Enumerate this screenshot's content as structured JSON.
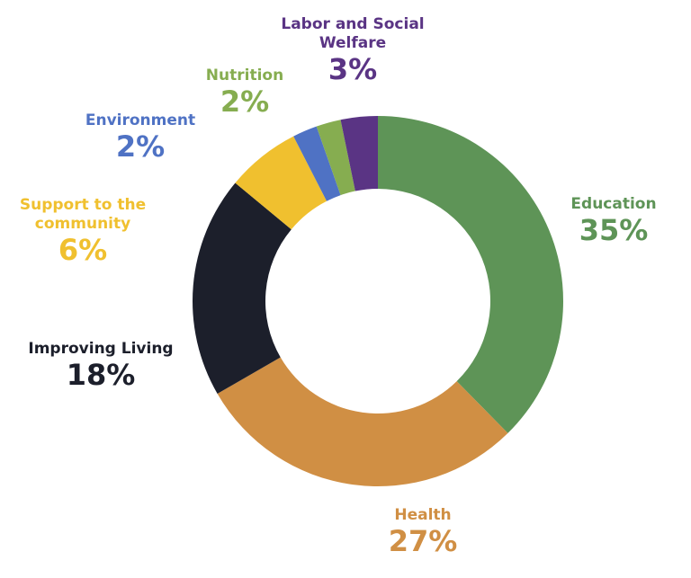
{
  "chart_data": {
    "type": "donut",
    "categories": [
      "Education",
      "Health",
      "Improving Living",
      "Support to the community",
      "Environment",
      "Nutrition",
      "Labor and Social Welfare"
    ],
    "values": [
      35,
      27,
      18,
      6,
      2,
      2,
      3
    ],
    "value_labels": [
      "35%",
      "27%",
      "18%",
      "6%",
      "2%",
      "2%",
      "3%"
    ],
    "colors": [
      "#5e9457",
      "#d08f44",
      "#1c1f2b",
      "#f0c02f",
      "#4f72c4",
      "#86ad50",
      "#5a3484"
    ]
  }
}
